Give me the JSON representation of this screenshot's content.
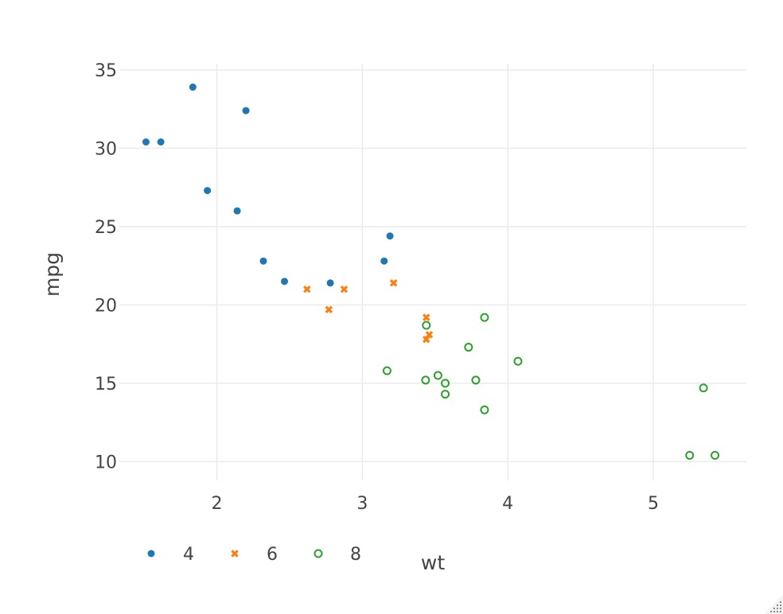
{
  "chart_data": {
    "type": "scatter",
    "xlabel": "wt",
    "ylabel": "mpg",
    "xlim": [
      1.33,
      5.64
    ],
    "ylim": [
      8.8,
      35.4
    ],
    "x_ticks": [
      2,
      3,
      4,
      5
    ],
    "y_ticks": [
      10,
      15,
      20,
      25,
      30,
      35
    ],
    "grid": true,
    "legend_position": "bottom-left",
    "series": [
      {
        "name": "4",
        "color": "#1f77b4",
        "marker": "circle",
        "points": [
          [
            1.835,
            33.9
          ],
          [
            2.2,
            32.4
          ],
          [
            1.513,
            30.4
          ],
          [
            1.615,
            30.4
          ],
          [
            1.935,
            27.3
          ],
          [
            2.14,
            26.0
          ],
          [
            3.19,
            24.4
          ],
          [
            2.32,
            22.8
          ],
          [
            3.15,
            22.8
          ],
          [
            2.465,
            21.5
          ],
          [
            2.78,
            21.4
          ]
        ]
      },
      {
        "name": "6",
        "color": "#ff7f0e",
        "marker": "x",
        "points": [
          [
            2.62,
            21.0
          ],
          [
            2.875,
            21.0
          ],
          [
            3.215,
            21.4
          ],
          [
            2.77,
            19.7
          ],
          [
            3.44,
            19.2
          ],
          [
            3.46,
            18.1
          ],
          [
            3.44,
            17.8
          ]
        ]
      },
      {
        "name": "8",
        "color": "#2ca02c",
        "marker": "circle-open",
        "points": [
          [
            3.44,
            18.7
          ],
          [
            3.84,
            19.2
          ],
          [
            3.73,
            17.3
          ],
          [
            4.07,
            16.4
          ],
          [
            3.17,
            15.8
          ],
          [
            3.52,
            15.5
          ],
          [
            3.435,
            15.2
          ],
          [
            3.78,
            15.2
          ],
          [
            3.57,
            15.0
          ],
          [
            3.57,
            14.3
          ],
          [
            5.345,
            14.7
          ],
          [
            3.84,
            13.3
          ],
          [
            5.25,
            10.4
          ],
          [
            5.424,
            10.4
          ]
        ]
      }
    ]
  }
}
